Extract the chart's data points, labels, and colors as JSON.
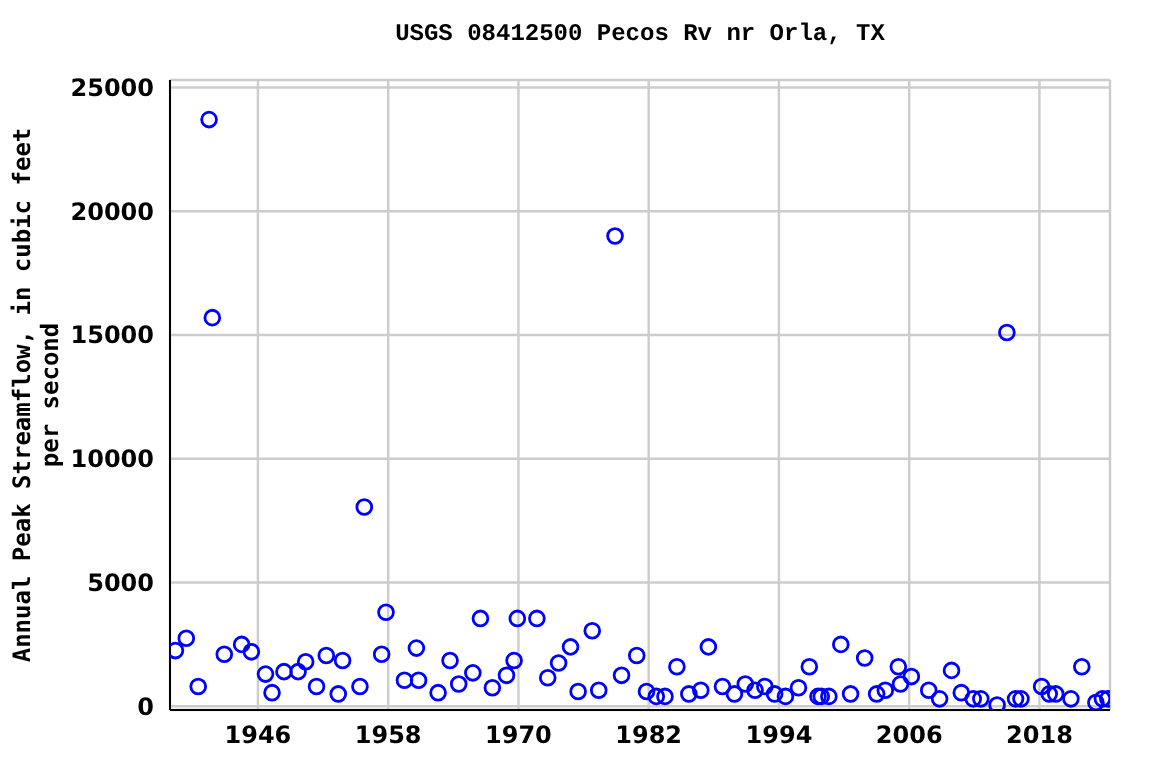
{
  "chart_data": {
    "type": "scatter",
    "title": "USGS 08412500 Pecos Rv nr Orla, TX",
    "ylabel": "Annual Peak Streamflow, in cubic feet\nper second",
    "x": [
      1938.4,
      1939.4,
      1940.5,
      1941.5,
      1941.8,
      1942.9,
      1944.5,
      1945.4,
      1946.7,
      1947.3,
      1948.4,
      1949.7,
      1950.4,
      1951.4,
      1952.3,
      1953.4,
      1953.8,
      1955.4,
      1955.8,
      1957.4,
      1957.8,
      1959.5,
      1960.6,
      1960.8,
      1962.6,
      1963.7,
      1964.5,
      1965.8,
      1966.5,
      1967.6,
      1968.9,
      1969.6,
      1969.9,
      1971.7,
      1972.7,
      1973.7,
      1974.8,
      1975.5,
      1976.8,
      1977.4,
      1978.9,
      1979.5,
      1980.9,
      1981.8,
      1982.7,
      1983.5,
      1984.6,
      1985.7,
      1986.8,
      1987.5,
      1988.8,
      1989.9,
      1990.9,
      1991.8,
      1992.7,
      1993.6,
      1994.6,
      1995.8,
      1996.8,
      1997.6,
      1997.9,
      1998.6,
      1999.7,
      2000.6,
      2001.9,
      2003.0,
      2003.8,
      2005.0,
      2005.2,
      2006.2,
      2007.8,
      2008.8,
      2009.9,
      2010.8,
      2011.9,
      2012.6,
      2014.1,
      2015.0,
      2015.8,
      2016.3,
      2018.2,
      2018.9,
      2019.5,
      2020.9,
      2021.9,
      2023.2,
      2023.8,
      2024.3
    ],
    "series": [
      {
        "color": "#0000ff",
        "values": [
          2250,
          2750,
          800,
          23700,
          15700,
          2100,
          2500,
          2200,
          1300,
          550,
          1400,
          1400,
          1800,
          800,
          2050,
          500,
          1850,
          800,
          8050,
          2100,
          3800,
          1050,
          2350,
          1050,
          550,
          1850,
          900,
          1350,
          3550,
          750,
          1250,
          1850,
          3550,
          3550,
          1150,
          1750,
          2400,
          600,
          3050,
          650,
          19000,
          1250,
          2050,
          600,
          400,
          400,
          1600,
          500,
          650,
          2400,
          800,
          500,
          900,
          650,
          800,
          500,
          400,
          750,
          1600,
          400,
          400,
          400,
          2500,
          500,
          1950,
          500,
          650,
          1600,
          900,
          1200,
          650,
          300,
          1450,
          550,
          300,
          300,
          50,
          15100,
          300,
          300,
          800,
          500,
          500,
          300,
          1600,
          150,
          300,
          300
        ]
      }
    ],
    "xlim": [
      1937.9,
      2024.5
    ],
    "xticks": [
      1946,
      1958,
      1970,
      1982,
      1994,
      2006,
      2018
    ],
    "ylim": [
      -150,
      25300
    ],
    "yticks": [
      0,
      5000,
      10000,
      15000,
      20000,
      25000
    ],
    "grid": true,
    "marker": "circle"
  }
}
